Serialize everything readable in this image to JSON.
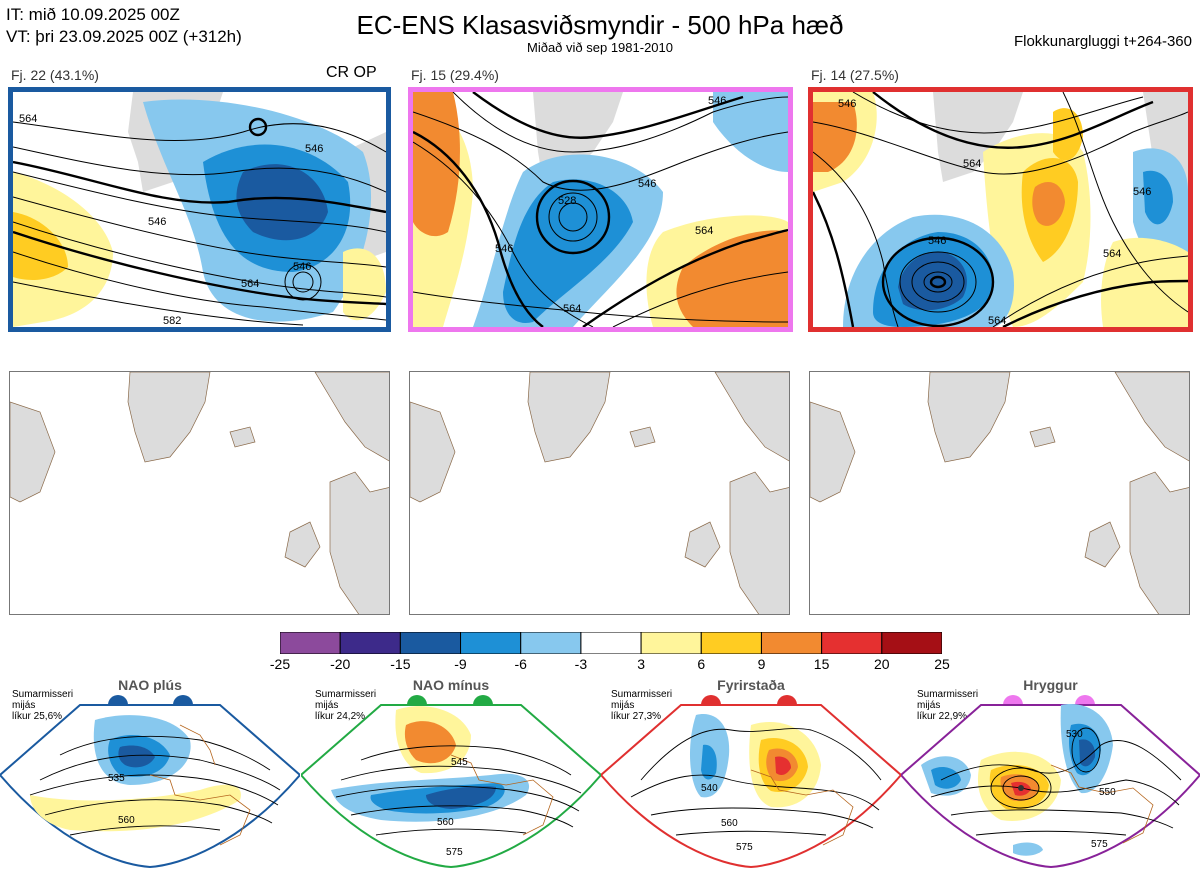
{
  "header": {
    "it_line": "IT: mið 10.09.2025 00Z",
    "vt_line": "VT: þri 23.09.2025 00Z  (+312h)",
    "title": "EC-ENS Klasasviðsmyndir - 500 hPa hæð",
    "subtitle": "Miðað við sep 1981-2010",
    "window": "Flokkunargluggi t+264-360"
  },
  "clusters": [
    {
      "caption": "Fj. 22 (43.1%)",
      "border_color": "#1a5aa0",
      "marker": "CR OP",
      "contour_labels": [
        "564",
        "546",
        "546",
        "564",
        "546",
        "582"
      ]
    },
    {
      "caption": "Fj. 15 (29.4%)",
      "border_color": "#ee77ee",
      "marker": "",
      "contour_labels": [
        "528",
        "546",
        "546",
        "564",
        "564",
        "546"
      ]
    },
    {
      "caption": "Fj. 14 (27.5%)",
      "border_color": "#e03030",
      "marker": "",
      "contour_labels": [
        "546",
        "564",
        "546",
        "564",
        "546",
        "564"
      ]
    }
  ],
  "colorbar": {
    "ticks": [
      "-25",
      "-20",
      "-15",
      "-9",
      "-6",
      "-3",
      "3",
      "6",
      "9",
      "15",
      "20",
      "25"
    ],
    "colors": [
      "#8c4a9c",
      "#3d2a8a",
      "#1a5aa0",
      "#1e90d6",
      "#87c8ee",
      "#ffffff",
      "#fff59b",
      "#ffcc22",
      "#f28a30",
      "#e53030",
      "#a50f15"
    ]
  },
  "regimes": [
    {
      "name": "NAO plús",
      "season": "Sumarmisseri",
      "period": "mijás",
      "probability": "líkur 25,6%",
      "dot_color": "#1a5aa0",
      "border_color": "#1a5aa0",
      "contour_labels": [
        "535",
        "560"
      ]
    },
    {
      "name": "NAO mínus",
      "season": "Sumarmisseri",
      "period": "mijás",
      "probability": "líkur 24,2%",
      "dot_color": "#22aa44",
      "border_color": "#22aa44",
      "contour_labels": [
        "545",
        "560",
        "575"
      ]
    },
    {
      "name": "Fyrirstaða",
      "season": "Sumarmisseri",
      "period": "mijás",
      "probability": "líkur 27,3%",
      "dot_color": "#e03030",
      "border_color": "#e03030",
      "contour_labels": [
        "540",
        "560",
        "575"
      ]
    },
    {
      "name": "Hryggur",
      "season": "Sumarmisseri",
      "period": "mijás",
      "probability": "líkur 22,9%",
      "dot_color": "#ee77ee",
      "border_color": "#882299",
      "contour_labels": [
        "530",
        "550",
        "575"
      ]
    }
  ]
}
